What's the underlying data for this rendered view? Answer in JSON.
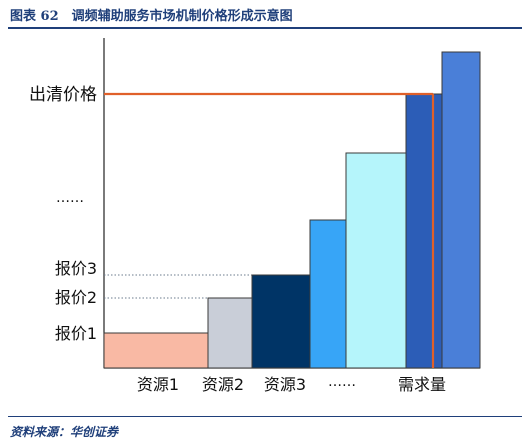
{
  "figure": {
    "title": "图表 62　调频辅助服务市场机制价格形成示意图",
    "source": "资料来源：华创证券"
  },
  "diagram": {
    "y_labels": [
      "出清价格",
      "……",
      "报价3",
      "报价2",
      "报价1"
    ],
    "x_labels": [
      "资源1",
      "资源2",
      "资源3",
      "……",
      "需求量"
    ],
    "colors": {
      "clearing_line": "#e0602a",
      "bars": [
        "#f9b9a4",
        "#c9ced8",
        "#003466",
        "#37a5f7",
        "#b5f5fb",
        "#2c5db7",
        "#4a7fd8"
      ]
    }
  }
}
